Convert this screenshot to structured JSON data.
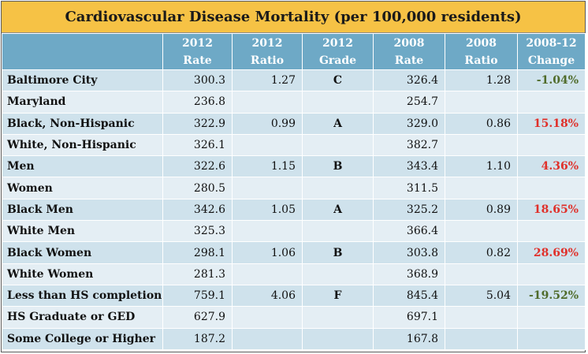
{
  "title": "Cardiovascular Disease Mortality (per 100,000 residents)",
  "colors": {
    "title_bg": "#f6c245",
    "header_bg": "#6ea9c6",
    "decrease": "#4f6b2a",
    "increase": "#e0302a"
  },
  "headers": [
    {
      "line1": "",
      "line2": ""
    },
    {
      "line1": "2012",
      "line2": "Rate"
    },
    {
      "line1": "2012",
      "line2": "Ratio"
    },
    {
      "line1": "2012",
      "line2": "Grade"
    },
    {
      "line1": "2008",
      "line2": "Rate"
    },
    {
      "line1": "2008",
      "line2": "Ratio"
    },
    {
      "line1": "2008-12",
      "line2": "Change"
    }
  ],
  "rows": [
    {
      "label": "Baltimore City",
      "rate2012": "300.3",
      "ratio2012": "1.27",
      "grade2012": "C",
      "rate2008": "326.4",
      "ratio2008": "1.28",
      "change": "-1.04%",
      "dir": "neg"
    },
    {
      "label": "Maryland",
      "rate2012": "236.8",
      "ratio2012": "",
      "grade2012": "",
      "rate2008": "254.7",
      "ratio2008": "",
      "change": "",
      "dir": ""
    },
    {
      "label": "Black, Non-Hispanic",
      "rate2012": "322.9",
      "ratio2012": "0.99",
      "grade2012": "A",
      "rate2008": "329.0",
      "ratio2008": "0.86",
      "change": "15.18%",
      "dir": "pos"
    },
    {
      "label": "White, Non-Hispanic",
      "rate2012": "326.1",
      "ratio2012": "",
      "grade2012": "",
      "rate2008": "382.7",
      "ratio2008": "",
      "change": "",
      "dir": ""
    },
    {
      "label": "Men",
      "rate2012": "322.6",
      "ratio2012": "1.15",
      "grade2012": "B",
      "rate2008": "343.4",
      "ratio2008": "1.10",
      "change": "4.36%",
      "dir": "pos"
    },
    {
      "label": "Women",
      "rate2012": "280.5",
      "ratio2012": "",
      "grade2012": "",
      "rate2008": "311.5",
      "ratio2008": "",
      "change": "",
      "dir": ""
    },
    {
      "label": "Black Men",
      "rate2012": "342.6",
      "ratio2012": "1.05",
      "grade2012": "A",
      "rate2008": "325.2",
      "ratio2008": "0.89",
      "change": "18.65%",
      "dir": "pos"
    },
    {
      "label": "White Men",
      "rate2012": "325.3",
      "ratio2012": "",
      "grade2012": "",
      "rate2008": "366.4",
      "ratio2008": "",
      "change": "",
      "dir": ""
    },
    {
      "label": "Black Women",
      "rate2012": "298.1",
      "ratio2012": "1.06",
      "grade2012": "B",
      "rate2008": "303.8",
      "ratio2008": "0.82",
      "change": "28.69%",
      "dir": "pos"
    },
    {
      "label": "White Women",
      "rate2012": "281.3",
      "ratio2012": "",
      "grade2012": "",
      "rate2008": "368.9",
      "ratio2008": "",
      "change": "",
      "dir": ""
    },
    {
      "label": "Less than HS completion",
      "rate2012": "759.1",
      "ratio2012": "4.06",
      "grade2012": "F",
      "rate2008": "845.4",
      "ratio2008": "5.04",
      "change": "-19.52%",
      "dir": "neg"
    },
    {
      "label": "HS Graduate or GED",
      "rate2012": "627.9",
      "ratio2012": "",
      "grade2012": "",
      "rate2008": "697.1",
      "ratio2008": "",
      "change": "",
      "dir": ""
    },
    {
      "label": "Some College or Higher",
      "rate2012": "187.2",
      "ratio2012": "",
      "grade2012": "",
      "rate2008": "167.8",
      "ratio2008": "",
      "change": "",
      "dir": ""
    }
  ]
}
